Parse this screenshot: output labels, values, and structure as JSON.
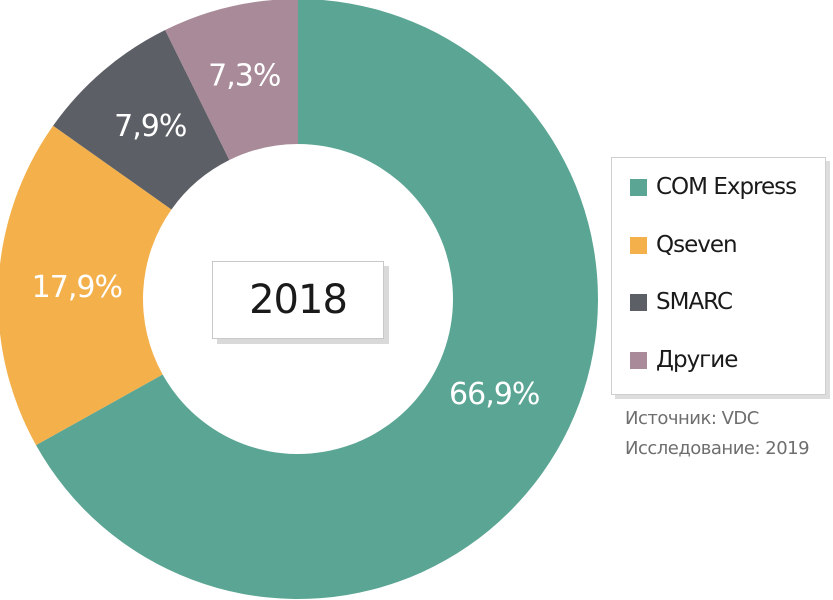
{
  "chart_data": {
    "type": "pie",
    "style": "donut",
    "center_label": "2018",
    "categories": [
      "COM Express",
      "Qseven",
      "SMARC",
      "Другие"
    ],
    "values": [
      66.9,
      17.9,
      7.9,
      7.3
    ],
    "value_labels": [
      "66,9%",
      "17,9%",
      "7,9%",
      "7,3%"
    ],
    "colors": [
      "#5aa593",
      "#f3b04b",
      "#5d5f66",
      "#a98a98"
    ],
    "legend_position": "right"
  },
  "legend": {
    "items": [
      {
        "label": "COM Express",
        "color": "#5aa593"
      },
      {
        "label": "Qseven",
        "color": "#f3b04b"
      },
      {
        "label": "SMARC",
        "color": "#5d5f66"
      },
      {
        "label": "Другие",
        "color": "#a98a98"
      }
    ]
  },
  "source": {
    "line1": "Источник: VDC",
    "line2": "Исследование: 2019"
  }
}
